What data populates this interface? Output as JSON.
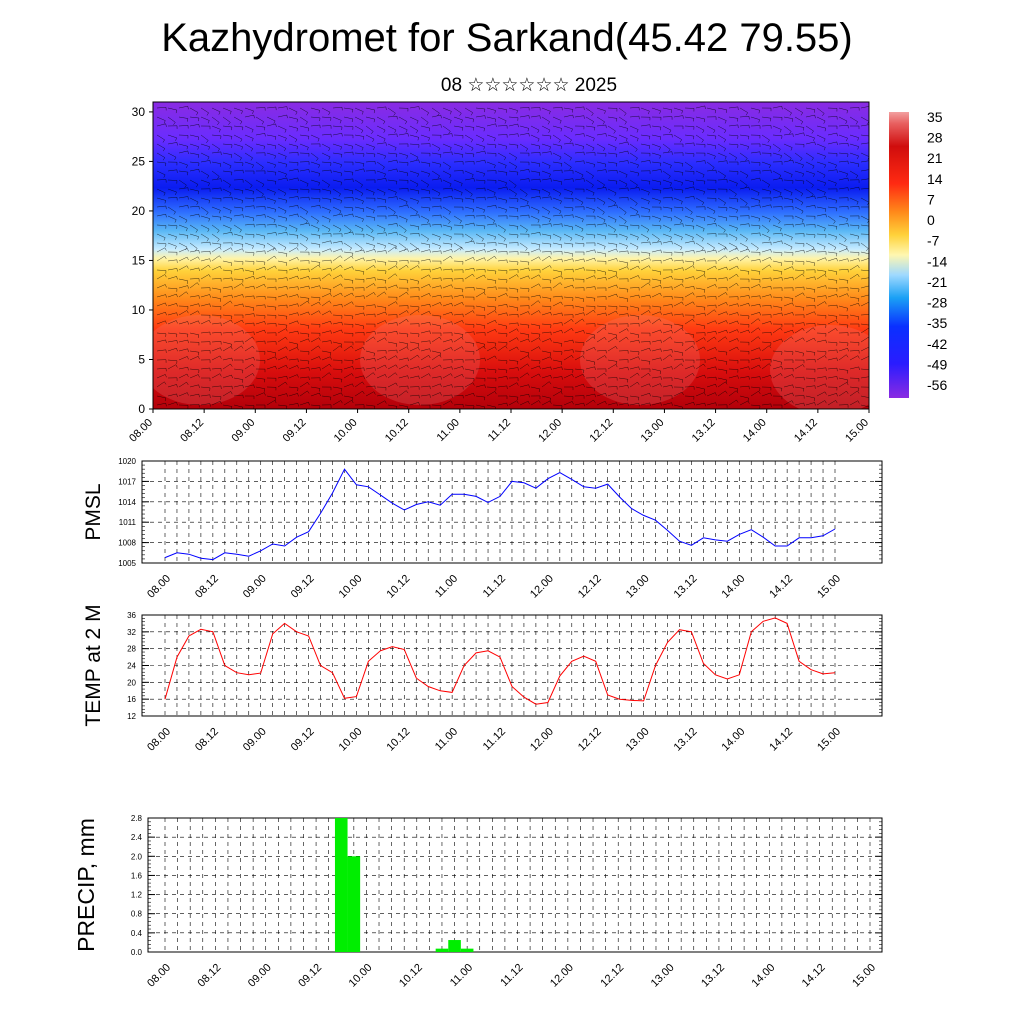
{
  "title": "Kazhydromet for Sarkand(45.42 79.55)",
  "subtitle": "08 ☆☆☆☆☆☆ 2025",
  "chart_data": [
    {
      "type": "heatmap",
      "description_role": "vertical cross-section temperature field with wind barbs",
      "y_ticks": [
        "0",
        "5",
        "10",
        "15",
        "20",
        "25",
        "30"
      ],
      "ylim": [
        0,
        31
      ],
      "x_ticks": [
        "08.00",
        "08.12",
        "09.00",
        "09.12",
        "10.00",
        "10.12",
        "11.00",
        "11.12",
        "12.00",
        "12.12",
        "13.00",
        "13.12",
        "14.00",
        "14.12",
        "15.00"
      ],
      "colorbar_labels": [
        "35",
        "28",
        "21",
        "14",
        "7",
        "0",
        "-7",
        "-14",
        "-21",
        "-28",
        "-35",
        "-42",
        "-49",
        "-56"
      ],
      "colors": {
        "warm": "#d40a0a",
        "mid": "#f7d23a",
        "cold": "#1a2fff",
        "top": "#7a26ff"
      }
    },
    {
      "type": "line",
      "ylabel": "PMSL",
      "ylim": [
        1005,
        1020
      ],
      "y_ticks": [
        "1005",
        "1008",
        "1011",
        "1014",
        "1017",
        "1020"
      ],
      "x_ticks": [
        "08.00",
        "08.12",
        "09.00",
        "09.12",
        "10.00",
        "10.12",
        "11.00",
        "11.12",
        "12.00",
        "12.12",
        "13.00",
        "13.12",
        "14.00",
        "14.12",
        "15.00"
      ],
      "color": "#0000ff",
      "values": [
        1005.8,
        1006.5,
        1006.3,
        1005.7,
        1005.5,
        1006.5,
        1006.3,
        1006.0,
        1006.8,
        1007.8,
        1007.5,
        1008.8,
        1009.6,
        1012.3,
        1015.3,
        1018.8,
        1016.5,
        1016.2,
        1015.0,
        1013.8,
        1012.8,
        1013.6,
        1014.0,
        1013.5,
        1015.1,
        1015.1,
        1014.8,
        1013.9,
        1014.8,
        1017.0,
        1016.8,
        1016.0,
        1017.4,
        1018.3,
        1017.3,
        1016.2,
        1016.0,
        1016.6,
        1014.7,
        1013.0,
        1012.0,
        1011.3,
        1009.8,
        1008.2,
        1007.6,
        1008.7,
        1008.4,
        1008.2,
        1009.2,
        1009.9,
        1008.8,
        1007.5,
        1007.5,
        1008.7,
        1008.7,
        1009.0,
        1010.0
      ]
    },
    {
      "type": "line",
      "ylabel": "TEMP at 2 M",
      "ylim": [
        12,
        36
      ],
      "y_ticks": [
        "12",
        "16",
        "20",
        "24",
        "28",
        "32",
        "36"
      ],
      "x_ticks": [
        "08.00",
        "08.12",
        "09.00",
        "09.12",
        "10.00",
        "10.12",
        "11.00",
        "11.12",
        "12.00",
        "12.12",
        "13.00",
        "13.12",
        "14.00",
        "14.12",
        "15.00"
      ],
      "color": "#ff0000",
      "values": [
        16,
        26,
        31,
        32.6,
        32,
        24,
        22.3,
        21.8,
        22.2,
        31.5,
        34,
        32,
        31,
        24,
        22.3,
        16.2,
        16.6,
        25,
        27.5,
        28.5,
        27.8,
        21,
        19,
        18,
        17.6,
        24,
        27,
        27.5,
        26,
        19,
        16.5,
        14.8,
        15.2,
        21.5,
        25,
        26.2,
        25,
        17,
        16,
        15.7,
        15.6,
        24,
        29.5,
        32.5,
        32,
        24.5,
        21.8,
        20.8,
        21.8,
        32,
        34.5,
        35.3,
        34,
        25,
        23,
        22,
        22.3
      ]
    },
    {
      "type": "bar",
      "ylabel": "PRECIP, mm",
      "ylim": [
        0,
        2.8
      ],
      "y_ticks": [
        "0.0",
        "0.4",
        "0.8",
        "1.2",
        "1.6",
        "2.0",
        "2.4",
        "2.8"
      ],
      "x_ticks": [
        "08.00",
        "08.12",
        "09.00",
        "09.12",
        "10.00",
        "10.12",
        "11.00",
        "11.12",
        "12.00",
        "12.12",
        "13.00",
        "13.12",
        "14.00",
        "14.12",
        "15.00"
      ],
      "color": "#00ee00",
      "bars": [
        {
          "hour": 42,
          "value": 2.8
        },
        {
          "hour": 45,
          "value": 2.0
        },
        {
          "hour": 66,
          "value": 0.07
        },
        {
          "hour": 69,
          "value": 0.25
        },
        {
          "hour": 72,
          "value": 0.07
        }
      ]
    }
  ]
}
